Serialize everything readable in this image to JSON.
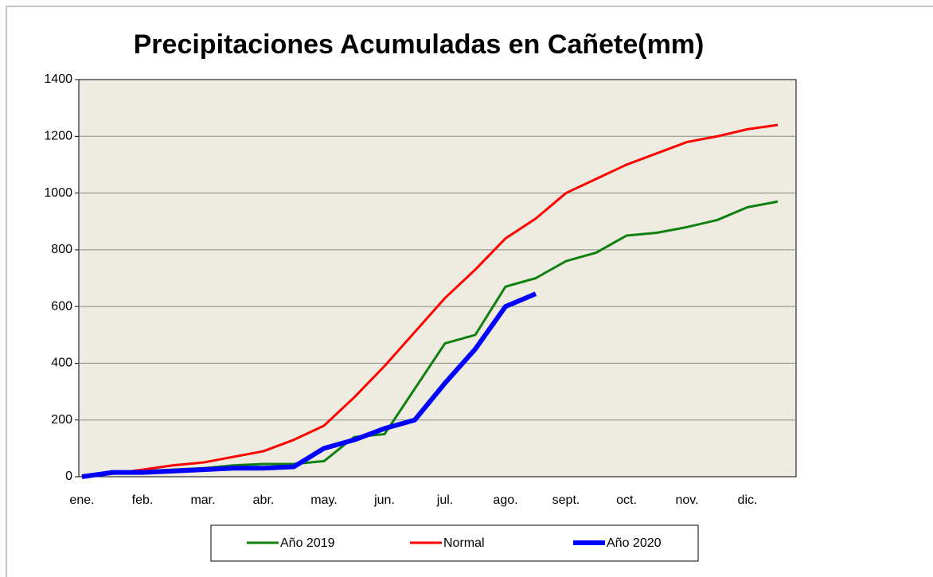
{
  "chart_data": {
    "type": "line",
    "title": "Precipitaciones Acumuladas en Cañete(mm)",
    "categories": [
      "ene.",
      null,
      "feb.",
      null,
      "mar.",
      null,
      "abr.",
      null,
      "may.",
      null,
      "jun.",
      null,
      "jul.",
      null,
      "ago.",
      null,
      "sept.",
      null,
      "oct.",
      null,
      "nov.",
      null,
      "dic.",
      null
    ],
    "series": [
      {
        "name": "Año 2019",
        "color": "#108010",
        "values": [
          0,
          15,
          20,
          25,
          30,
          40,
          45,
          45,
          55,
          140,
          150,
          310,
          470,
          500,
          670,
          700,
          760,
          790,
          850,
          860,
          880,
          905,
          950,
          970
        ]
      },
      {
        "name": "Normal",
        "color": "#ff0000",
        "values": [
          0,
          10,
          25,
          40,
          50,
          70,
          90,
          130,
          180,
          280,
          390,
          510,
          630,
          730,
          840,
          910,
          1000,
          1050,
          1100,
          1140,
          1180,
          1200,
          1225,
          1240
        ]
      },
      {
        "name": "Año 2020",
        "color": "#0000ff",
        "values": [
          0,
          15,
          15,
          20,
          25,
          30,
          30,
          35,
          100,
          130,
          170,
          200,
          330,
          450,
          600,
          645,
          null,
          null,
          null,
          null,
          null,
          null,
          null,
          null
        ]
      }
    ],
    "ylim": [
      0,
      1400
    ],
    "yticks": [
      0,
      200,
      400,
      600,
      800,
      1000,
      1200,
      1400
    ],
    "grid": true
  }
}
